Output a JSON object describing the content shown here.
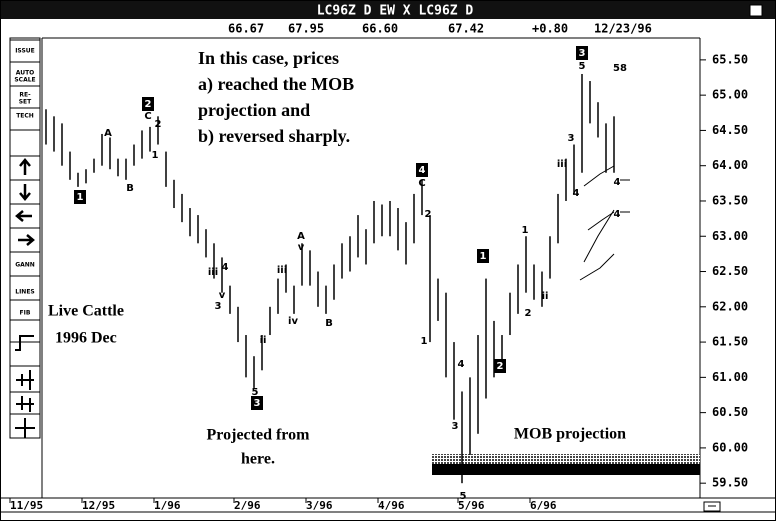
{
  "chart_data": {
    "type": "ohlc",
    "header": "LC96Z D EW X LC96Z D",
    "quote": [
      "66.67",
      "67.95",
      "66.60",
      "67.42",
      "+0.80",
      "12/23/96"
    ],
    "toolbar": [
      "ISSUE",
      "AUTO",
      "SCALE",
      "RE-",
      "SET",
      "TECH",
      "GANN",
      "LINES",
      "FIB"
    ],
    "notes": [
      "In this case, prices",
      "a) reached the MOB",
      "projection and",
      "b) reversed sharply.",
      "Live Cattle",
      "1996  Dec",
      "Projected from",
      "here.",
      "MOB projection"
    ],
    "annotations": [
      "1",
      "A",
      "B",
      "2",
      "C",
      "2",
      "1",
      "iii",
      "4",
      "v",
      "3",
      "ii",
      "5",
      "3",
      "iv",
      "iii",
      "A",
      "v",
      "B",
      "4",
      "C",
      "2",
      "1",
      "4",
      "3",
      "5",
      "1",
      "2",
      "2",
      "1",
      "ii",
      "iii",
      "3",
      "4",
      "3",
      "5",
      "58",
      "4",
      "4"
    ],
    "categories": [
      "11/95",
      null,
      null,
      null,
      null,
      null,
      null,
      null,
      null,
      "12/95",
      null,
      null,
      null,
      null,
      null,
      null,
      null,
      null,
      "1/96",
      null,
      null,
      null,
      null,
      null,
      null,
      null,
      null,
      null,
      "2/96",
      null,
      null,
      null,
      null,
      null,
      null,
      null,
      null,
      "3/96",
      null,
      null,
      null,
      null,
      null,
      null,
      null,
      null,
      "4/96",
      null,
      null,
      null,
      null,
      null,
      null,
      null,
      null,
      null,
      "5/96",
      null,
      null,
      null,
      null,
      null,
      null,
      null,
      null,
      "6/96",
      null,
      null,
      null,
      null,
      null,
      null,
      null,
      null,
      null,
      null
    ],
    "high": [
      null,
      null,
      null,
      null,
      64.8,
      64.7,
      64.6,
      64.2,
      63.9,
      63.95,
      64.1,
      64.45,
      64.4,
      64.1,
      64.1,
      64.3,
      64.5,
      64.55,
      64.7,
      64.2,
      63.8,
      63.6,
      63.4,
      63.3,
      63.1,
      62.9,
      62.7,
      62.3,
      62.0,
      61.6,
      61.3,
      61.6,
      62.0,
      62.4,
      62.6,
      62.3,
      62.9,
      62.8,
      62.5,
      62.3,
      62.6,
      62.9,
      63.0,
      63.3,
      63.1,
      63.5,
      63.45,
      63.5,
      63.4,
      63.2,
      63.6,
      63.8,
      63.3,
      62.4,
      62.2,
      61.5,
      60.8,
      61.0,
      61.6,
      62.4,
      61.8,
      61.6,
      62.2,
      62.6,
      63.0,
      62.6,
      62.5,
      63.0,
      63.6,
      64.1,
      64.3,
      65.3,
      65.2,
      64.9,
      64.6,
      64.7
    ],
    "low": [
      null,
      null,
      null,
      null,
      64.3,
      64.2,
      64.0,
      63.8,
      63.7,
      63.75,
      63.9,
      64.0,
      63.95,
      63.85,
      63.8,
      64.0,
      64.1,
      64.2,
      64.3,
      63.7,
      63.4,
      63.2,
      63.0,
      62.9,
      62.7,
      62.4,
      62.2,
      61.9,
      61.5,
      61.0,
      60.85,
      61.1,
      61.6,
      61.9,
      62.2,
      61.9,
      62.3,
      62.3,
      62.0,
      61.9,
      62.1,
      62.4,
      62.5,
      62.7,
      62.6,
      62.9,
      63.0,
      63.0,
      62.8,
      62.6,
      62.9,
      63.3,
      61.5,
      61.8,
      61.0,
      60.4,
      59.5,
      59.9,
      60.2,
      60.7,
      61.0,
      61.1,
      61.6,
      61.9,
      62.2,
      62.1,
      62.0,
      62.4,
      62.9,
      63.5,
      63.6,
      63.9,
      64.6,
      64.4,
      63.9,
      63.9
    ],
    "color": "#000000",
    "ylim": [
      59.29,
      65.81
    ],
    "yticks": [
      {
        "value": 65.5,
        "label": "65.50"
      },
      {
        "value": 65.0,
        "label": "65.00"
      },
      {
        "value": 64.5,
        "label": "64.50"
      },
      {
        "value": 64.0,
        "label": "64.00"
      },
      {
        "value": 63.5,
        "label": "63.50"
      },
      {
        "value": 63.0,
        "label": "63.00"
      },
      {
        "value": 62.5,
        "label": "62.50"
      },
      {
        "value": 62.0,
        "label": "62.00"
      },
      {
        "value": 61.5,
        "label": "61.50"
      },
      {
        "value": 61.0,
        "label": "61.00"
      },
      {
        "value": 60.5,
        "label": "60.50"
      },
      {
        "value": 60.0,
        "label": "60.00"
      },
      {
        "value": 59.5,
        "label": "59.50"
      }
    ]
  }
}
